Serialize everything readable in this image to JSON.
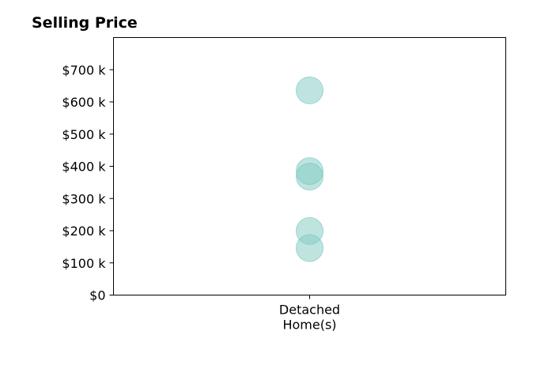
{
  "chart_data": {
    "type": "scatter",
    "title": "Selling Price",
    "xlabel": "",
    "ylabel": "",
    "categories": [
      "Detached\nHome(s)"
    ],
    "y_ticks": [
      {
        "value": 0,
        "label": "$0"
      },
      {
        "value": 100000,
        "label": "$100 k"
      },
      {
        "value": 200000,
        "label": "$200 k"
      },
      {
        "value": 300000,
        "label": "$300 k"
      },
      {
        "value": 400000,
        "label": "$400 k"
      },
      {
        "value": 500000,
        "label": "$500 k"
      },
      {
        "value": 600000,
        "label": "$600 k"
      },
      {
        "value": 700000,
        "label": "$700 k"
      }
    ],
    "ylim": [
      0,
      800000
    ],
    "grid": false,
    "series": [
      {
        "category": "Detached\nHome(s)",
        "values": [
          636000,
          385000,
          368000,
          199000,
          146000
        ],
        "color": "#7fc9c1"
      }
    ]
  }
}
